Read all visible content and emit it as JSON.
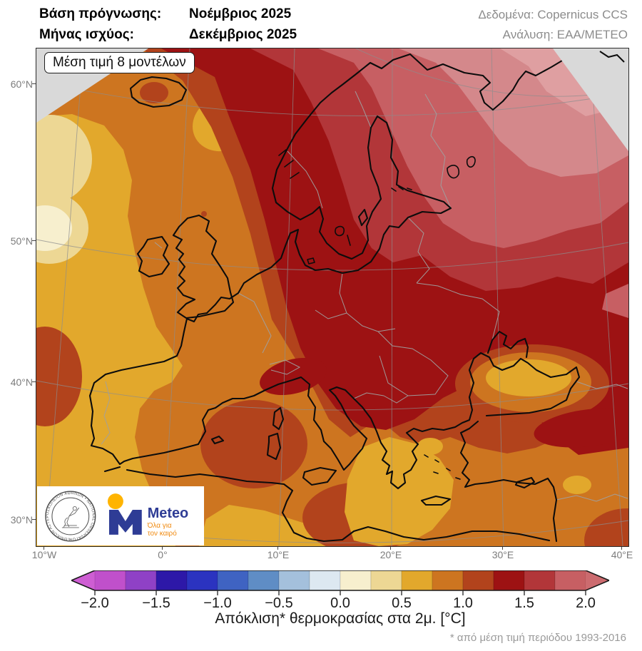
{
  "header": {
    "base_label": "Βάση πρόγνωσης:",
    "base_value": "Νοέμβριος 2025",
    "valid_label": "Μήνας ισχύος:",
    "valid_value": "Δεκέμβριος 2025",
    "data_credit": "Δεδομένα: Copernicus CCS",
    "analysis_credit": "Ανάλυση: ΕΑΑ/ΜΕΤΕΟ"
  },
  "map": {
    "model_label": "Μέση τιμή 8 μοντέλων",
    "lat_labels": [
      "60°N",
      "50°N",
      "40°N",
      "30°N"
    ],
    "lon_labels": [
      "10°W",
      "0°",
      "10°E",
      "20°E",
      "30°E",
      "40°E"
    ]
  },
  "logos": {
    "observatory_ring_text": "ΕΘΝΙΚΟΝ ΑΣΤΕΡΟΣΚΟΠΕΙΟΝ ΑΘΗΝΩΝ • NATIONAL OBSERVATORY OF ATHENS •",
    "meteo_name": "Meteo",
    "meteo_tagline_line1": "Όλα για",
    "meteo_tagline_line2": "τον καιρό",
    "meteo_blue": "#2e3c95",
    "meteo_orange": "#ffb400",
    "meteo_tagline_color": "#f08a10"
  },
  "colorbar": {
    "title": "Απόκλιση* θερμοκρασίας στα 2μ. [°C]",
    "footnote": "* από μέση τιμή περιόδου 1993-2016",
    "tick_labels": [
      "−2.0",
      "−1.5",
      "−1.0",
      "−0.5",
      "0.0",
      "0.5",
      "1.0",
      "1.5",
      "2.0"
    ],
    "cell_colors": [
      "#c050cb",
      "#8f41c6",
      "#2d18a8",
      "#2b33c0",
      "#3f63c2",
      "#5f8dc5",
      "#a4c0dc",
      "#dde8f1",
      "#f7efce",
      "#edd794",
      "#e2a82c",
      "#cd7520",
      "#b2431c",
      "#9d1213",
      "#b23639",
      "#c75f63"
    ],
    "arrow_left_color": "#ce5ed3",
    "arrow_right_color": "#cc6b6f"
  },
  "map_colors": {
    "outside": "#d9d9d9",
    "band_000_025": "#f7efce",
    "band_025_050": "#edd794",
    "band_050_075": "#e2a82c",
    "band_075_100": "#cd7520",
    "band_100_125": "#b2431c",
    "band_125_150": "#9d1213",
    "band_150_175": "#b23639",
    "band_175_200": "#c75f63",
    "band_gt_200": "#d4888b",
    "band_max": "#df9fa1",
    "coast": "#0c0c0c",
    "border": "#a0a0a0",
    "graticule": "#8d8d8d"
  },
  "chart_data": {
    "type": "heatmap",
    "title": "Μέση τιμή 8 μοντέλων",
    "variable": "Απόκλιση* θερμοκρασίας στα 2μ. [°C]",
    "reference": "* από μέση τιμή περιόδου 1993-2016",
    "scale_ticks": [
      -2.0,
      -1.5,
      -1.0,
      -0.5,
      0.0,
      0.5,
      1.0,
      1.5,
      2.0
    ],
    "scale_step": 0.25,
    "lat_range_deg_n": [
      30,
      60
    ],
    "lon_range_deg": [
      -10,
      40
    ],
    "region_values_degC": {
      "ne_russia_white_sea": "≥ 2.0",
      "finland_nw_russia_baltic": "1.75 – 2.0",
      "sweden_norway_coast_belarus": "1.5 – 1.75",
      "central_europe_balkans_denmark_caucasus": "1.25 – 1.5",
      "netherlands_germany_w_tyrrhenian_libya": "1.0 – 1.25",
      "uk_ireland_france_italy_turkey_n_africa": "0.75 – 1.0",
      "w_atlantic_iberia_w_aegean_black_sea_core": "0.5 – 0.75",
      "far_west_atlantic_patches": "0.0 – 0.5"
    }
  }
}
